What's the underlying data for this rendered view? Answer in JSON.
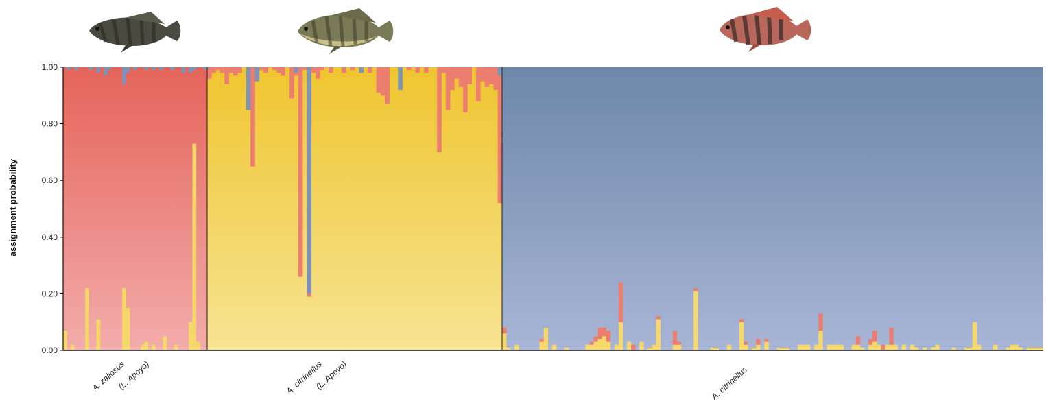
{
  "chart_data": {
    "type": "bar",
    "subtype": "stacked-structure-plot",
    "ylabel": "assignment probability",
    "xlabel": "",
    "ylim": [
      0,
      1
    ],
    "yticks": [
      "0.00",
      "0.20",
      "0.40",
      "0.60",
      "0.80",
      "1.00"
    ],
    "grid": false,
    "legend": "none",
    "components": [
      {
        "name": "",
        "color": "#e8675c"
      },
      {
        "name": "",
        "color": "#f0cb43"
      },
      {
        "name": "",
        "color": "#7f93b6"
      }
    ],
    "groups": [
      {
        "label": "A. zaliosus (L. Apoyo)",
        "line1": "A. zaliosus",
        "line2": "(L. Apoyo)",
        "fish": "dark-barred-cichlid-icon",
        "yellow": [
          0.07,
          0.0,
          0.02,
          0.0,
          0.0,
          0.0,
          0.22,
          0.0,
          0.0,
          0.11,
          0.0,
          0.0,
          0.0,
          0.0,
          0.0,
          0.0,
          0.22,
          0.15,
          0.0,
          0.0,
          0.0,
          0.02,
          0.03,
          0.0,
          0.02,
          0.0,
          0.0,
          0.05,
          0.0,
          0.0,
          0.02,
          0.0,
          0.0,
          0.0,
          0.1,
          0.73,
          0.03,
          0.0,
          0.0
        ],
        "blue": [
          0.0,
          0.01,
          0.0,
          0.01,
          0.0,
          0.0,
          0.0,
          0.01,
          0.0,
          0.02,
          0.0,
          0.03,
          0.01,
          0.0,
          0.0,
          0.0,
          0.06,
          0.02,
          0.0,
          0.01,
          0.0,
          0.0,
          0.01,
          0.0,
          0.01,
          0.0,
          0.01,
          0.0,
          0.0,
          0.01,
          0.0,
          0.0,
          0.02,
          0.0,
          0.02,
          0.01,
          0.0,
          0.0,
          0.01
        ]
      },
      {
        "label": "A. citrinellus (L. Apoyo)",
        "line1": "A. citrinellus",
        "line2": "(L. Apoyo)",
        "fish": "olive-cichlid-icon",
        "red": [
          0.04,
          0.02,
          0.01,
          0.02,
          0.06,
          0.02,
          0.03,
          0.02,
          0.0,
          0.0,
          0.35,
          0.0,
          0.01,
          0.02,
          0.0,
          0.01,
          0.02,
          0.03,
          0.0,
          0.11,
          0.01,
          0.74,
          0.01,
          0.01,
          0.02,
          0.04,
          0.01,
          0.0,
          0.02,
          0.0,
          0.0,
          0.02,
          0.0,
          0.01,
          0.0,
          0.0,
          0.0,
          0.02,
          0.0,
          0.09,
          0.1,
          0.13,
          0.0,
          0.0,
          0.0,
          0.0,
          0.01,
          0.0,
          0.02,
          0.0,
          0.02,
          0.0,
          0.0,
          0.3,
          0.02,
          0.15,
          0.08,
          0.04,
          0.07,
          0.16,
          0.06,
          0.0,
          0.12,
          0.05,
          0.07,
          0.06,
          0.08,
          0.45
        ],
        "blue": [
          0.0,
          0.0,
          0.0,
          0.0,
          0.0,
          0.0,
          0.0,
          0.0,
          0.0,
          0.15,
          0.0,
          0.05,
          0.0,
          0.0,
          0.0,
          0.0,
          0.0,
          0.0,
          0.0,
          0.0,
          0.02,
          0.0,
          0.0,
          0.8,
          0.0,
          0.0,
          0.0,
          0.0,
          0.0,
          0.0,
          0.0,
          0.0,
          0.0,
          0.0,
          0.0,
          0.02,
          0.0,
          0.0,
          0.0,
          0.0,
          0.0,
          0.0,
          0.0,
          0.0,
          0.08,
          0.0,
          0.0,
          0.0,
          0.0,
          0.0,
          0.0,
          0.0,
          0.0,
          0.0,
          0.0,
          0.0,
          0.0,
          0.0,
          0.0,
          0.0,
          0.0,
          0.0,
          0.0,
          0.0,
          0.0,
          0.0,
          0.0,
          0.03
        ]
      },
      {
        "label": "A. citrinellus",
        "line1": "A. citrinellus",
        "line2": "",
        "fish": "red-barred-cichlid-icon",
        "yellow": [
          0.06,
          0.01,
          0.0,
          0.02,
          0.0,
          0.0,
          0.0,
          0.0,
          0.0,
          0.03,
          0.08,
          0.0,
          0.02,
          0.0,
          0.0,
          0.01,
          0.0,
          0.0,
          0.0,
          0.0,
          0.02,
          0.02,
          0.03,
          0.04,
          0.05,
          0.03,
          0.0,
          0.02,
          0.1,
          0.0,
          0.03,
          0.0,
          0.0,
          0.03,
          0.0,
          0.01,
          0.02,
          0.11,
          0.0,
          0.0,
          0.0,
          0.02,
          0.02,
          0.0,
          0.0,
          0.0,
          0.21,
          0.0,
          0.0,
          0.0,
          0.01,
          0.01,
          0.0,
          0.0,
          0.02,
          0.0,
          0.0,
          0.1,
          0.02,
          0.0,
          0.01,
          0.02,
          0.0,
          0.03,
          0.0,
          0.0,
          0.01,
          0.01,
          0.01,
          0.0,
          0.0,
          0.02,
          0.02,
          0.02,
          0.0,
          0.02,
          0.07,
          0.0,
          0.02,
          0.02,
          0.02,
          0.02,
          0.0,
          0.0,
          0.02,
          0.02,
          0.01,
          0.0,
          0.02,
          0.03,
          0.02,
          0.0,
          0.02,
          0.02,
          0.02,
          0.0,
          0.02,
          0.0,
          0.02,
          0.01,
          0.0,
          0.01,
          0.0,
          0.01,
          0.02,
          0.0,
          0.0,
          0.0,
          0.01,
          0.0,
          0.0,
          0.01,
          0.01,
          0.1,
          0.02,
          0.0,
          0.0,
          0.0,
          0.02,
          0.0,
          0.0,
          0.01,
          0.02,
          0.02,
          0.01,
          0.0,
          0.01,
          0.01,
          0.01,
          0.01
        ],
        "red": [
          0.02,
          0.0,
          0.0,
          0.0,
          0.0,
          0.0,
          0.0,
          0.0,
          0.0,
          0.01,
          0.0,
          0.0,
          0.0,
          0.0,
          0.0,
          0.0,
          0.0,
          0.0,
          0.0,
          0.0,
          0.0,
          0.01,
          0.02,
          0.04,
          0.03,
          0.04,
          0.0,
          0.0,
          0.14,
          0.0,
          0.0,
          0.02,
          0.0,
          0.0,
          0.0,
          0.0,
          0.0,
          0.01,
          0.0,
          0.0,
          0.0,
          0.05,
          0.01,
          0.0,
          0.0,
          0.0,
          0.01,
          0.0,
          0.0,
          0.0,
          0.0,
          0.0,
          0.0,
          0.0,
          0.0,
          0.0,
          0.0,
          0.01,
          0.01,
          0.0,
          0.0,
          0.02,
          0.0,
          0.01,
          0.0,
          0.0,
          0.0,
          0.0,
          0.0,
          0.0,
          0.0,
          0.0,
          0.0,
          0.0,
          0.0,
          0.0,
          0.06,
          0.0,
          0.0,
          0.0,
          0.0,
          0.0,
          0.0,
          0.0,
          0.0,
          0.03,
          0.0,
          0.0,
          0.02,
          0.04,
          0.0,
          0.02,
          0.0,
          0.06,
          0.0,
          0.0,
          0.0,
          0.0,
          0.0,
          0.0,
          0.0,
          0.0,
          0.0,
          0.0,
          0.0,
          0.0,
          0.0,
          0.0,
          0.0,
          0.0,
          0.0,
          0.0,
          0.0,
          0.0,
          0.0,
          0.0,
          0.0,
          0.0,
          0.0,
          0.0,
          0.0,
          0.0,
          0.0,
          0.0,
          0.0,
          0.0,
          0.0,
          0.0,
          0.0,
          0.0
        ]
      }
    ]
  }
}
